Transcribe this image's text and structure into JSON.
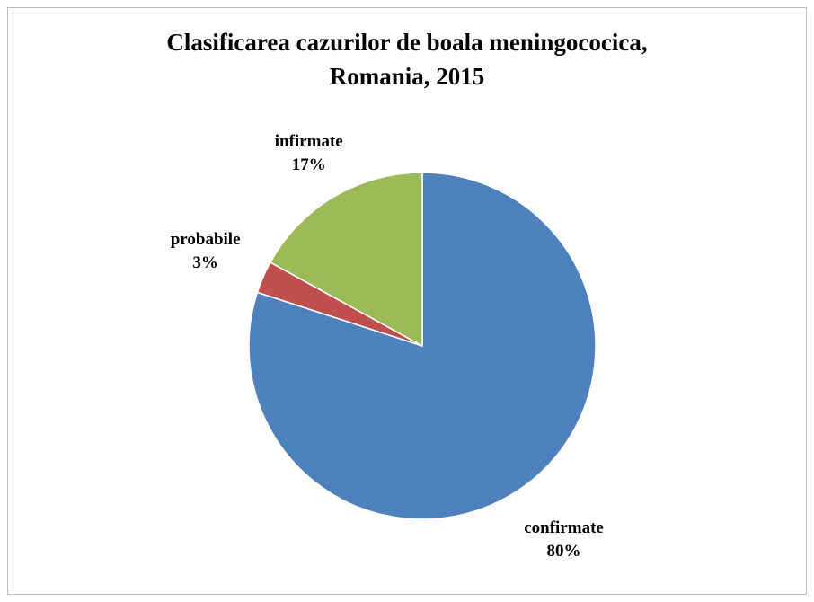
{
  "chart_data": {
    "type": "pie",
    "title": [
      "Clasificarea cazurilor de boala meningococica,",
      "Romania, 2015"
    ],
    "categories": [
      "confirmate",
      "probabile",
      "infirmate"
    ],
    "values": [
      80,
      3,
      17
    ],
    "value_labels": [
      "80%",
      "3%",
      "17%"
    ],
    "colors": [
      "#4f81bd",
      "#c0504d",
      "#9bbb59"
    ]
  }
}
